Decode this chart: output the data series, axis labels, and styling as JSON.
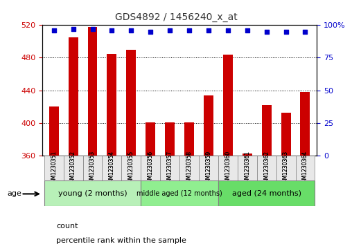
{
  "title": "GDS4892 / 1456240_x_at",
  "samples": [
    "GSM1230351",
    "GSM1230352",
    "GSM1230353",
    "GSM1230354",
    "GSM1230355",
    "GSM1230356",
    "GSM1230357",
    "GSM1230358",
    "GSM1230359",
    "GSM1230360",
    "GSM1230361",
    "GSM1230362",
    "GSM1230363",
    "GSM1230364"
  ],
  "count_values": [
    420,
    505,
    518,
    485,
    490,
    401,
    401,
    401,
    434,
    484,
    363,
    422,
    413,
    438
  ],
  "percentile_values": [
    96,
    97,
    97,
    96,
    96,
    95,
    96,
    96,
    96,
    96,
    96,
    95,
    95,
    95
  ],
  "bar_color": "#cc0000",
  "percentile_color": "#0000cc",
  "ylim_left": [
    360,
    520
  ],
  "ylim_right": [
    0,
    100
  ],
  "yticks_left": [
    360,
    400,
    440,
    480,
    520
  ],
  "yticks_right": [
    0,
    25,
    50,
    75,
    100
  ],
  "groups": [
    {
      "label": "young (2 months)",
      "start": 0,
      "end": 5,
      "color": "#90ee90"
    },
    {
      "label": "middle aged (12 months)",
      "start": 5,
      "end": 9,
      "color": "#66cc66"
    },
    {
      "label": "aged (24 months)",
      "start": 9,
      "end": 14,
      "color": "#44bb44"
    }
  ],
  "age_label": "age",
  "legend_count_label": "count",
  "legend_percentile_label": "percentile rank within the sample",
  "background_color": "#ffffff",
  "plot_bg_color": "#ffffff",
  "tick_label_color_left": "#cc0000",
  "tick_label_color_right": "#0000cc",
  "title_color": "#333333",
  "bar_width": 0.5
}
